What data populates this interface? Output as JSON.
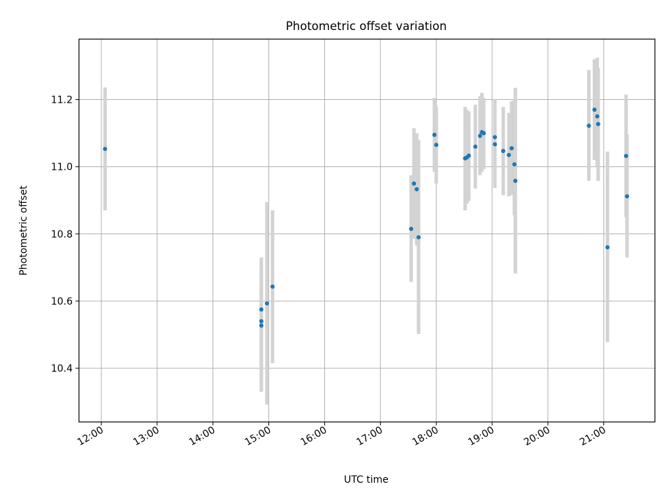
{
  "chart_data": {
    "type": "scatter",
    "title": "Photometric offset variation",
    "xlabel": "UTC time",
    "ylabel": "Photometric offset",
    "xlim": [
      "11:36",
      "21:55"
    ],
    "ylim": [
      10.24,
      11.38
    ],
    "xticks": [
      "12:00",
      "13:00",
      "14:00",
      "15:00",
      "16:00",
      "17:00",
      "18:00",
      "19:00",
      "20:00",
      "21:00"
    ],
    "yticks": [
      10.4,
      10.6,
      10.8,
      11.0,
      11.2
    ],
    "grid": true,
    "colors": {
      "points": "#1f77b4",
      "errorbars": "#d3d3d3",
      "grid": "#b0b0b0"
    },
    "points": [
      {
        "time": "12:04",
        "y": 11.053,
        "low": 10.87,
        "high": 11.236
      },
      {
        "time": "14:52",
        "y": 10.575,
        "low": 10.4,
        "high": 10.73
      },
      {
        "time": "14:52",
        "y": 10.54,
        "low": 10.35,
        "high": 10.7
      },
      {
        "time": "14:52",
        "y": 10.527,
        "low": 10.33,
        "high": 10.71
      },
      {
        "time": "14:58",
        "y": 10.593,
        "low": 10.292,
        "high": 10.895
      },
      {
        "time": "15:04",
        "y": 10.643,
        "low": 10.415,
        "high": 10.87
      },
      {
        "time": "17:33",
        "y": 10.815,
        "low": 10.657,
        "high": 10.975
      },
      {
        "time": "17:36",
        "y": 10.95,
        "low": 10.785,
        "high": 11.115
      },
      {
        "time": "17:39",
        "y": 10.933,
        "low": 10.765,
        "high": 11.1
      },
      {
        "time": "17:41",
        "y": 10.79,
        "low": 10.502,
        "high": 11.08
      },
      {
        "time": "17:58",
        "y": 11.095,
        "low": 10.985,
        "high": 11.205
      },
      {
        "time": "18:00",
        "y": 11.065,
        "low": 10.95,
        "high": 11.18
      },
      {
        "time": "18:31",
        "y": 11.025,
        "low": 10.87,
        "high": 11.178
      },
      {
        "time": "18:33",
        "y": 11.028,
        "low": 10.89,
        "high": 11.17
      },
      {
        "time": "18:35",
        "y": 11.033,
        "low": 10.898,
        "high": 11.165
      },
      {
        "time": "18:42",
        "y": 11.06,
        "low": 10.935,
        "high": 11.185
      },
      {
        "time": "18:47",
        "y": 11.092,
        "low": 10.975,
        "high": 11.21
      },
      {
        "time": "18:49",
        "y": 11.103,
        "low": 10.985,
        "high": 11.22
      },
      {
        "time": "18:51",
        "y": 11.1,
        "low": 10.993,
        "high": 11.205
      },
      {
        "time": "19:03",
        "y": 11.088,
        "low": 10.97,
        "high": 11.202
      },
      {
        "time": "19:03",
        "y": 11.067,
        "low": 10.937,
        "high": 11.195
      },
      {
        "time": "19:12",
        "y": 11.047,
        "low": 10.915,
        "high": 11.178
      },
      {
        "time": "19:18",
        "y": 11.035,
        "low": 10.912,
        "high": 11.16
      },
      {
        "time": "19:21",
        "y": 11.055,
        "low": 10.915,
        "high": 11.195
      },
      {
        "time": "19:24",
        "y": 11.007,
        "low": 10.855,
        "high": 11.2
      },
      {
        "time": "19:25",
        "y": 10.958,
        "low": 10.682,
        "high": 11.235
      },
      {
        "time": "20:44",
        "y": 11.122,
        "low": 10.958,
        "high": 11.288
      },
      {
        "time": "20:50",
        "y": 11.17,
        "low": 11.02,
        "high": 11.32
      },
      {
        "time": "20:53",
        "y": 11.15,
        "low": 11.0,
        "high": 11.325
      },
      {
        "time": "20:54",
        "y": 11.127,
        "low": 10.958,
        "high": 11.295
      },
      {
        "time": "21:04",
        "y": 10.76,
        "low": 10.478,
        "high": 11.045
      },
      {
        "time": "21:24",
        "y": 11.032,
        "low": 10.85,
        "high": 11.215
      },
      {
        "time": "21:25",
        "y": 10.912,
        "low": 10.73,
        "high": 11.097
      }
    ]
  }
}
